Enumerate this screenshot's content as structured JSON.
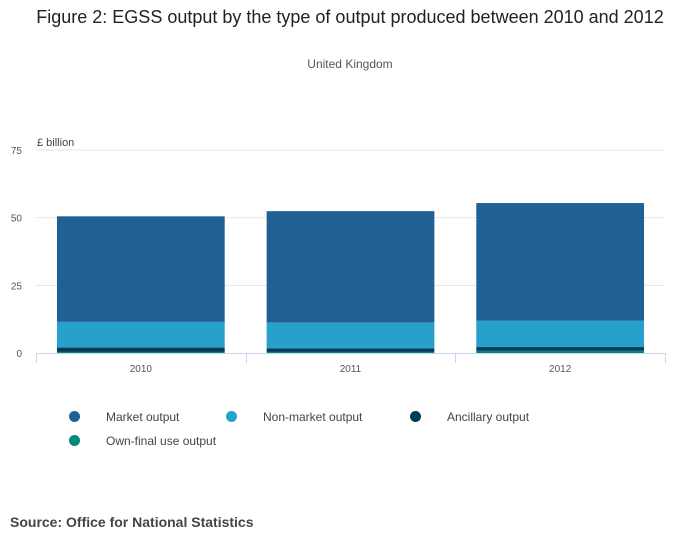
{
  "title": "Figure 2: EGSS output by the type of output produced between 2010 and 2012",
  "subtitle": "United Kingdom",
  "source": "Source: Office for National Statistics",
  "chart_data": {
    "type": "bar",
    "stacked": true,
    "title": "Figure 2: EGSS output by the type of output produced between 2010 and 2012",
    "subtitle": "United Kingdom",
    "ylabel": "£ billion",
    "xlabel": "",
    "ylim": [
      0,
      75
    ],
    "yticks": [
      0,
      25,
      50,
      75
    ],
    "categories": [
      "2010",
      "2011",
      "2012"
    ],
    "series": [
      {
        "name": "Own-final use output",
        "color": "#00897b",
        "values": [
          0.4,
          0.4,
          0.8
        ]
      },
      {
        "name": "Ancillary output",
        "color": "#003c57",
        "values": [
          1.6,
          1.3,
          1.4
        ]
      },
      {
        "name": "Non-market output",
        "color": "#27a0cc",
        "values": [
          9.5,
          9.6,
          9.7
        ]
      },
      {
        "name": "Market output",
        "color": "#206095",
        "values": [
          39.0,
          41.1,
          43.5
        ]
      }
    ],
    "legend": [
      "Market output",
      "Non-market output",
      "Ancillary output",
      "Own-final use output"
    ],
    "legend_position": "bottom",
    "grid": true
  }
}
